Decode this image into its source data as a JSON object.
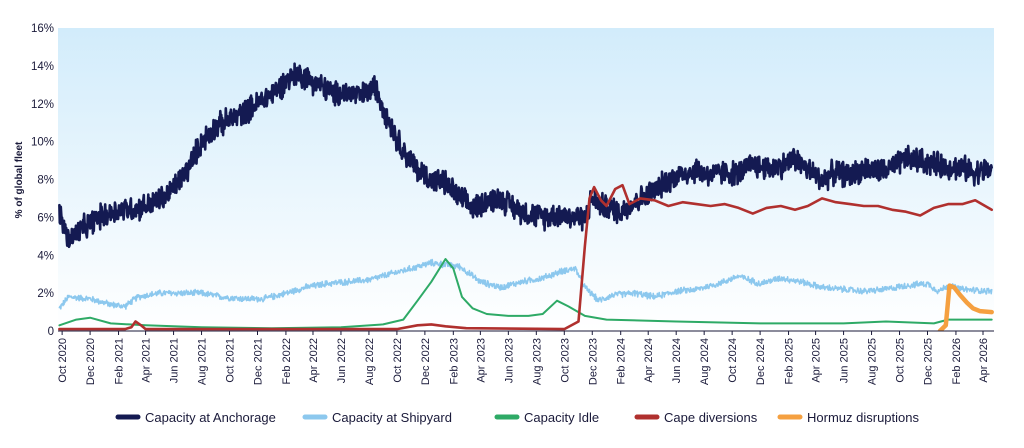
{
  "chart_data": {
    "type": "line",
    "title": "",
    "xlabel": "",
    "ylabel": "% of global fleet",
    "ylim": [
      0,
      16
    ],
    "y_ticks": [
      0,
      2,
      4,
      6,
      8,
      10,
      12,
      14,
      16
    ],
    "y_tick_labels": [
      "0",
      "2%",
      "4%",
      "6%",
      "8%",
      "10%",
      "12%",
      "14%",
      "16%"
    ],
    "x_start": "2020-09-22",
    "x_end": "2026-04-25",
    "x_ticks": [
      {
        "date": "2020-10-01",
        "label": "Oct 2020"
      },
      {
        "date": "2020-12-01",
        "label": "Dec 2020"
      },
      {
        "date": "2021-02-01",
        "label": "Feb 2021"
      },
      {
        "date": "2021-04-01",
        "label": "Apr 2021"
      },
      {
        "date": "2021-06-01",
        "label": "Jun 2021"
      },
      {
        "date": "2021-08-01",
        "label": "Aug 2021"
      },
      {
        "date": "2021-10-01",
        "label": "Oct 2021"
      },
      {
        "date": "2021-12-01",
        "label": "Dec 2021"
      },
      {
        "date": "2022-02-01",
        "label": "Feb 2022"
      },
      {
        "date": "2022-04-01",
        "label": "Apr 2022"
      },
      {
        "date": "2022-06-01",
        "label": "Jun 2022"
      },
      {
        "date": "2022-08-01",
        "label": "Aug 2022"
      },
      {
        "date": "2022-10-01",
        "label": "Oct 2022"
      },
      {
        "date": "2022-12-01",
        "label": "Dec 2022"
      },
      {
        "date": "2023-02-01",
        "label": "Feb 2023"
      },
      {
        "date": "2023-04-01",
        "label": "Apr 2023"
      },
      {
        "date": "2023-06-01",
        "label": "Jun 2023"
      },
      {
        "date": "2023-08-01",
        "label": "Aug 2023"
      },
      {
        "date": "2023-10-01",
        "label": "Oct 2023"
      },
      {
        "date": "2023-12-01",
        "label": "Dec 2023"
      },
      {
        "date": "2024-02-01",
        "label": "Feb 2024"
      },
      {
        "date": "2024-04-01",
        "label": "Apr 2024"
      },
      {
        "date": "2024-06-01",
        "label": "Jun 2024"
      },
      {
        "date": "2024-08-01",
        "label": "Aug 2024"
      },
      {
        "date": "2024-10-01",
        "label": "Oct 2024"
      },
      {
        "date": "2024-12-01",
        "label": "Dec 2024"
      },
      {
        "date": "2025-02-01",
        "label": "Feb 2025"
      },
      {
        "date": "2025-04-01",
        "label": "Apr 2025"
      },
      {
        "date": "2025-06-01",
        "label": "Jun 2025"
      },
      {
        "date": "2025-08-01",
        "label": "Aug 2025"
      },
      {
        "date": "2025-10-01",
        "label": "Oct 2025"
      },
      {
        "date": "2025-12-01",
        "label": "Dec 2025"
      },
      {
        "date": "2026-02-01",
        "label": "Feb 2026"
      },
      {
        "date": "2026-04-01",
        "label": "Apr 2026"
      }
    ],
    "grid": false,
    "legend_position": "bottom",
    "background": "light-blue gradient",
    "series": [
      {
        "name": "Capacity at Anchorage",
        "color": "#141a52",
        "stroke": "thick",
        "noisy": true,
        "points": [
          [
            "2020-09-25",
            6.2
          ],
          [
            "2020-10-15",
            4.8
          ],
          [
            "2020-11-15",
            5.4
          ],
          [
            "2020-12-20",
            6.0
          ],
          [
            "2021-02-01",
            6.4
          ],
          [
            "2021-03-15",
            6.5
          ],
          [
            "2021-04-15",
            6.7
          ],
          [
            "2021-05-20",
            7.2
          ],
          [
            "2021-07-01",
            8.5
          ],
          [
            "2021-08-01",
            10.0
          ],
          [
            "2021-09-01",
            10.8
          ],
          [
            "2021-10-15",
            11.3
          ],
          [
            "2021-12-01",
            12.0
          ],
          [
            "2022-01-15",
            12.8
          ],
          [
            "2022-02-10",
            13.4
          ],
          [
            "2022-03-01",
            13.6
          ],
          [
            "2022-04-15",
            13.0
          ],
          [
            "2022-05-15",
            12.5
          ],
          [
            "2022-06-15",
            12.6
          ],
          [
            "2022-07-15",
            12.4
          ],
          [
            "2022-08-15",
            12.9
          ],
          [
            "2022-09-15",
            11.0
          ],
          [
            "2022-10-15",
            9.5
          ],
          [
            "2022-11-15",
            8.5
          ],
          [
            "2022-12-15",
            8.0
          ],
          [
            "2023-01-15",
            7.8
          ],
          [
            "2023-02-15",
            7.0
          ],
          [
            "2023-03-15",
            6.5
          ],
          [
            "2023-04-15",
            6.9
          ],
          [
            "2023-05-15",
            7.0
          ],
          [
            "2023-06-15",
            6.5
          ],
          [
            "2023-07-15",
            6.2
          ],
          [
            "2023-08-15",
            6.0
          ],
          [
            "2023-09-15",
            6.2
          ],
          [
            "2023-10-20",
            6.0
          ],
          [
            "2023-11-15",
            6.0
          ],
          [
            "2023-12-01",
            7.0
          ],
          [
            "2024-01-01",
            6.5
          ],
          [
            "2024-02-01",
            6.3
          ],
          [
            "2024-03-01",
            6.8
          ],
          [
            "2024-04-15",
            7.4
          ],
          [
            "2024-05-15",
            8.0
          ],
          [
            "2024-06-15",
            8.3
          ],
          [
            "2024-07-15",
            8.5
          ],
          [
            "2024-08-15",
            8.2
          ],
          [
            "2024-09-15",
            8.4
          ],
          [
            "2024-10-15",
            8.3
          ],
          [
            "2024-11-15",
            8.8
          ],
          [
            "2024-12-15",
            8.6
          ],
          [
            "2025-01-15",
            8.7
          ],
          [
            "2025-02-15",
            9.1
          ],
          [
            "2025-03-15",
            8.5
          ],
          [
            "2025-04-15",
            8.0
          ],
          [
            "2025-05-15",
            8.4
          ],
          [
            "2025-06-15",
            8.2
          ],
          [
            "2025-07-15",
            8.6
          ],
          [
            "2025-08-15",
            8.4
          ],
          [
            "2025-09-15",
            8.6
          ],
          [
            "2025-10-15",
            9.1
          ],
          [
            "2025-11-15",
            9.0
          ],
          [
            "2025-12-15",
            8.8
          ],
          [
            "2026-01-15",
            8.7
          ],
          [
            "2026-02-15",
            8.6
          ],
          [
            "2026-03-15",
            8.4
          ],
          [
            "2026-04-20",
            8.5
          ]
        ]
      },
      {
        "name": "Capacity at Shipyard",
        "color": "#8cc8ee",
        "stroke": "thin",
        "noisy": true,
        "points": [
          [
            "2020-09-25",
            1.2
          ],
          [
            "2020-10-15",
            1.8
          ],
          [
            "2020-12-01",
            1.7
          ],
          [
            "2021-01-15",
            1.4
          ],
          [
            "2021-02-15",
            1.3
          ],
          [
            "2021-03-15",
            1.8
          ],
          [
            "2021-05-01",
            2.0
          ],
          [
            "2021-06-15",
            2.0
          ],
          [
            "2021-08-01",
            2.0
          ],
          [
            "2021-09-15",
            1.8
          ],
          [
            "2021-11-01",
            1.7
          ],
          [
            "2021-12-15",
            1.7
          ],
          [
            "2022-02-01",
            2.0
          ],
          [
            "2022-03-15",
            2.3
          ],
          [
            "2022-05-01",
            2.5
          ],
          [
            "2022-06-15",
            2.6
          ],
          [
            "2022-08-01",
            2.7
          ],
          [
            "2022-09-15",
            3.0
          ],
          [
            "2022-11-01",
            3.3
          ],
          [
            "2022-12-15",
            3.6
          ],
          [
            "2023-01-15",
            3.5
          ],
          [
            "2023-02-15",
            3.4
          ],
          [
            "2023-04-01",
            2.6
          ],
          [
            "2023-05-15",
            2.3
          ],
          [
            "2023-07-01",
            2.6
          ],
          [
            "2023-08-15",
            2.8
          ],
          [
            "2023-10-01",
            3.2
          ],
          [
            "2023-10-25",
            3.3
          ],
          [
            "2023-11-15",
            2.3
          ],
          [
            "2023-12-15",
            1.6
          ],
          [
            "2024-01-15",
            1.9
          ],
          [
            "2024-03-01",
            2.0
          ],
          [
            "2024-04-15",
            1.8
          ],
          [
            "2024-06-01",
            2.1
          ],
          [
            "2024-07-15",
            2.2
          ],
          [
            "2024-09-01",
            2.5
          ],
          [
            "2024-10-15",
            2.9
          ],
          [
            "2024-12-01",
            2.5
          ],
          [
            "2025-01-15",
            2.8
          ],
          [
            "2025-03-01",
            2.6
          ],
          [
            "2025-04-15",
            2.3
          ],
          [
            "2025-06-01",
            2.2
          ],
          [
            "2025-07-15",
            2.1
          ],
          [
            "2025-09-01",
            2.2
          ],
          [
            "2025-10-15",
            2.4
          ],
          [
            "2025-12-01",
            2.5
          ],
          [
            "2025-12-25",
            2.1
          ],
          [
            "2026-01-15",
            2.4
          ],
          [
            "2026-02-15",
            2.2
          ],
          [
            "2026-04-20",
            2.1
          ]
        ]
      },
      {
        "name": "Capacity Idle",
        "color": "#2eaa66",
        "stroke": "medium",
        "noisy": false,
        "points": [
          [
            "2020-09-25",
            0.3
          ],
          [
            "2020-11-01",
            0.6
          ],
          [
            "2020-12-01",
            0.7
          ],
          [
            "2021-01-15",
            0.4
          ],
          [
            "2021-04-01",
            0.3
          ],
          [
            "2021-08-01",
            0.2
          ],
          [
            "2022-01-01",
            0.15
          ],
          [
            "2022-06-01",
            0.2
          ],
          [
            "2022-09-01",
            0.35
          ],
          [
            "2022-10-15",
            0.6
          ],
          [
            "2022-11-15",
            1.6
          ],
          [
            "2022-12-15",
            2.6
          ],
          [
            "2023-01-15",
            3.8
          ],
          [
            "2023-02-01",
            3.3
          ],
          [
            "2023-02-20",
            1.8
          ],
          [
            "2023-03-15",
            1.2
          ],
          [
            "2023-04-15",
            0.9
          ],
          [
            "2023-06-01",
            0.8
          ],
          [
            "2023-07-15",
            0.8
          ],
          [
            "2023-08-15",
            0.9
          ],
          [
            "2023-09-15",
            1.6
          ],
          [
            "2023-10-10",
            1.3
          ],
          [
            "2023-11-15",
            0.8
          ],
          [
            "2024-01-01",
            0.6
          ],
          [
            "2024-06-01",
            0.5
          ],
          [
            "2024-12-01",
            0.4
          ],
          [
            "2025-06-01",
            0.4
          ],
          [
            "2025-09-01",
            0.5
          ],
          [
            "2025-12-15",
            0.4
          ],
          [
            "2026-01-15",
            0.6
          ],
          [
            "2026-02-15",
            0.6
          ],
          [
            "2026-04-20",
            0.6
          ]
        ]
      },
      {
        "name": "Cape diversions",
        "color": "#b0302e",
        "stroke": "thick",
        "noisy": false,
        "points": [
          [
            "2020-09-25",
            0.1
          ],
          [
            "2021-02-15",
            0.1
          ],
          [
            "2021-03-01",
            0.2
          ],
          [
            "2021-03-10",
            0.5
          ],
          [
            "2021-03-22",
            0.3
          ],
          [
            "2021-04-01",
            0.1
          ],
          [
            "2022-10-01",
            0.1
          ],
          [
            "2022-11-15",
            0.3
          ],
          [
            "2022-12-15",
            0.35
          ],
          [
            "2023-01-15",
            0.25
          ],
          [
            "2023-03-01",
            0.15
          ],
          [
            "2023-10-01",
            0.1
          ],
          [
            "2023-11-01",
            0.5
          ],
          [
            "2023-11-15",
            4.5
          ],
          [
            "2023-11-25",
            7.0
          ],
          [
            "2023-12-05",
            7.6
          ],
          [
            "2023-12-20",
            6.9
          ],
          [
            "2024-01-01",
            6.6
          ],
          [
            "2024-01-20",
            7.5
          ],
          [
            "2024-02-05",
            7.7
          ],
          [
            "2024-02-20",
            6.7
          ],
          [
            "2024-03-15",
            7.0
          ],
          [
            "2024-04-15",
            6.9
          ],
          [
            "2024-05-15",
            6.6
          ],
          [
            "2024-06-15",
            6.8
          ],
          [
            "2024-07-15",
            6.7
          ],
          [
            "2024-08-15",
            6.6
          ],
          [
            "2024-09-15",
            6.7
          ],
          [
            "2024-10-15",
            6.5
          ],
          [
            "2024-11-15",
            6.2
          ],
          [
            "2024-12-15",
            6.5
          ],
          [
            "2025-01-15",
            6.6
          ],
          [
            "2025-02-15",
            6.4
          ],
          [
            "2025-03-15",
            6.6
          ],
          [
            "2025-04-15",
            7.0
          ],
          [
            "2025-05-15",
            6.8
          ],
          [
            "2025-06-15",
            6.7
          ],
          [
            "2025-07-15",
            6.6
          ],
          [
            "2025-08-15",
            6.6
          ],
          [
            "2025-09-15",
            6.4
          ],
          [
            "2025-10-15",
            6.3
          ],
          [
            "2025-11-15",
            6.1
          ],
          [
            "2025-12-15",
            6.5
          ],
          [
            "2026-01-15",
            6.7
          ],
          [
            "2026-02-15",
            6.7
          ],
          [
            "2026-03-15",
            6.9
          ],
          [
            "2026-04-20",
            6.4
          ]
        ]
      },
      {
        "name": "Hormuz disruptions",
        "color": "#f5a040",
        "stroke": "very-thick",
        "noisy": false,
        "points": [
          [
            "2025-12-28",
            0.0
          ],
          [
            "2026-01-10",
            0.3
          ],
          [
            "2026-01-18",
            2.4
          ],
          [
            "2026-01-28",
            2.3
          ],
          [
            "2026-02-10",
            1.9
          ],
          [
            "2026-02-25",
            1.5
          ],
          [
            "2026-03-10",
            1.2
          ],
          [
            "2026-03-25",
            1.05
          ],
          [
            "2026-04-20",
            1.0
          ]
        ]
      }
    ]
  }
}
